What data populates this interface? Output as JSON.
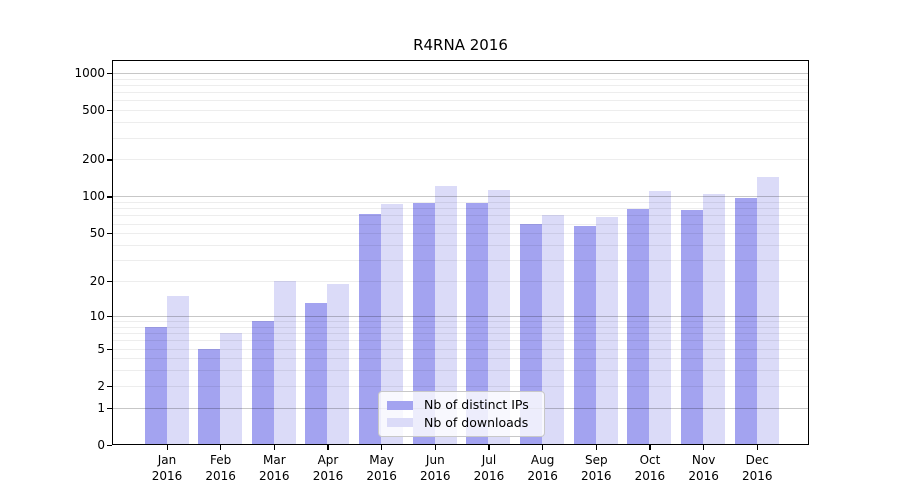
{
  "title": "R4RNA 2016",
  "chart_data": {
    "type": "bar",
    "title": "R4RNA 2016",
    "yscale": "log1p",
    "grid": true,
    "legend_position": "lower-center",
    "categories": [
      "Jan\n2016",
      "Feb\n2016",
      "Mar\n2016",
      "Apr\n2016",
      "May\n2016",
      "Jun\n2016",
      "Jul\n2016",
      "Aug\n2016",
      "Sep\n2016",
      "Oct\n2016",
      "Nov\n2016",
      "Dec\n2016"
    ],
    "series": [
      {
        "name": "Nb of distinct IPs",
        "color": "#a3a3f0",
        "values": [
          8,
          5,
          9,
          13,
          72,
          88,
          88,
          60,
          57,
          79,
          78,
          97
        ]
      },
      {
        "name": "Nb of downloads",
        "color": "#dbdbf8",
        "values": [
          15,
          7,
          20,
          19,
          87,
          122,
          113,
          70,
          68,
          111,
          104,
          145
        ]
      }
    ],
    "y_ticks": [
      0,
      1,
      2,
      5,
      10,
      20,
      50,
      100,
      200,
      500,
      1000
    ],
    "y_major_grid": [
      1,
      10,
      100,
      1000
    ],
    "y_minor_grid": [
      2,
      3,
      4,
      5,
      6,
      7,
      8,
      9,
      20,
      30,
      40,
      50,
      60,
      70,
      80,
      90,
      200,
      300,
      400,
      500,
      600,
      700,
      800,
      900
    ],
    "ylim": [
      0,
      1300
    ]
  }
}
